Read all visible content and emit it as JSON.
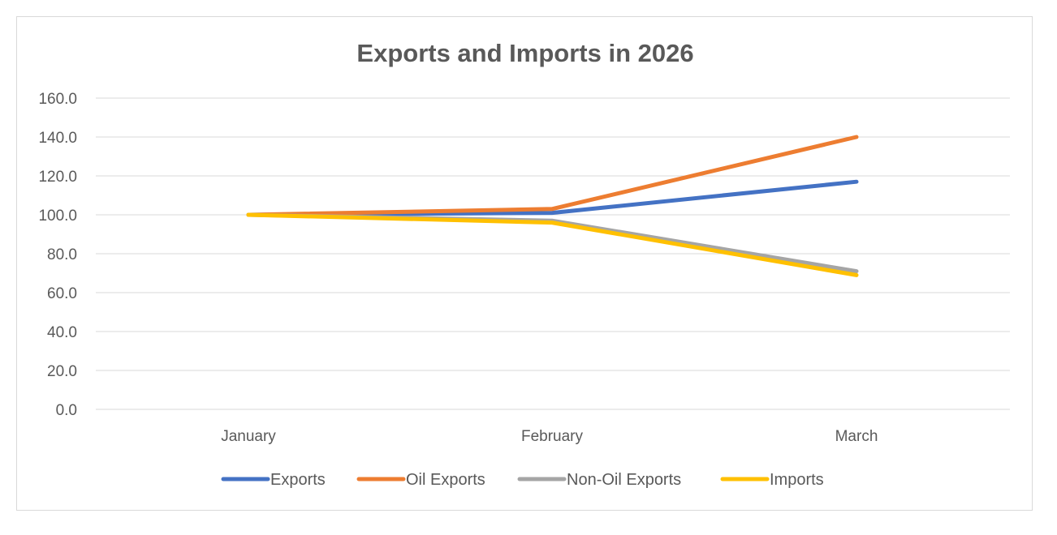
{
  "chart_data": {
    "type": "line",
    "title": "Exports and Imports in 2026",
    "xlabel": "",
    "ylabel": "",
    "categories": [
      "January",
      "February",
      "March"
    ],
    "ylim": [
      0,
      160
    ],
    "yticks": [
      0,
      20,
      40,
      60,
      80,
      100,
      120,
      140,
      160
    ],
    "ytick_labels": [
      "0.0",
      "20.0",
      "40.0",
      "60.0",
      "80.0",
      "100.0",
      "120.0",
      "140.0",
      "160.0"
    ],
    "grid": true,
    "legend_position": "bottom",
    "series": [
      {
        "name": "Exports",
        "color": "#4472C4",
        "values": [
          100,
          101,
          117
        ]
      },
      {
        "name": "Oil Exports",
        "color": "#ED7D31",
        "values": [
          100,
          103,
          140
        ]
      },
      {
        "name": "Non-Oil Exports",
        "color": "#A5A5A5",
        "values": [
          100,
          97,
          71
        ]
      },
      {
        "name": "Imports",
        "color": "#FFC000",
        "values": [
          100,
          96,
          69
        ]
      }
    ]
  }
}
